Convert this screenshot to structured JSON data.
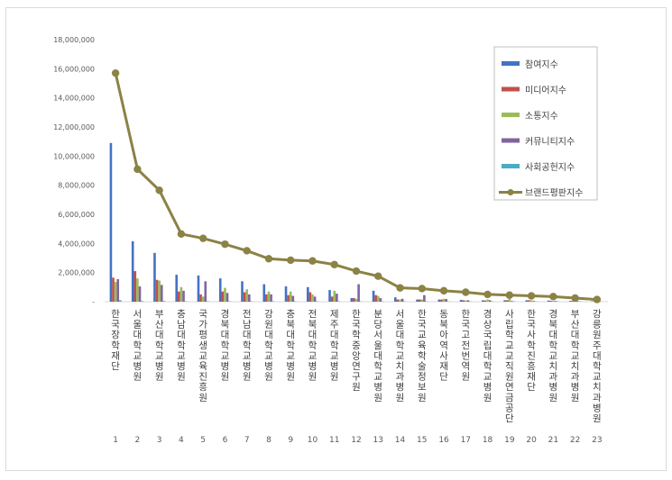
{
  "chart_data": {
    "type": "bar",
    "y_ticks": [
      "-",
      "2,000,000",
      "4,000,000",
      "6,000,000",
      "8,000,000",
      "10,000,000",
      "12,000,000",
      "14,000,000",
      "16,000,000",
      "18,000,000"
    ],
    "ylim": [
      0,
      18000000
    ],
    "grid": false,
    "legend_position": "top-right",
    "x": [
      "1",
      "2",
      "3",
      "4",
      "5",
      "6",
      "7",
      "8",
      "9",
      "10",
      "11",
      "12",
      "13",
      "14",
      "15",
      "16",
      "17",
      "18",
      "19",
      "20",
      "21",
      "22",
      "23"
    ],
    "categories": [
      "한국장학재단",
      "서울대학교병원",
      "부산대학교병원",
      "충남대학교병원",
      "국가평생교육진흥원",
      "경북대학교병원",
      "전남대학교병원",
      "강원대학교병원",
      "충북대학교병원",
      "전북대학교병원",
      "제주대학교병원",
      "한국학중앙연구원",
      "분당서울대학교병원",
      "서울대학교치과병원",
      "한국교육학술정보원",
      "동북아역사재단",
      "한국고전번역원",
      "경상국립대학교병원",
      "사립학교교직원연금공단",
      "한국사학진흥재단",
      "경북대학교치과병원",
      "부산대학교치과병원",
      "강릉원주대학교치과병원"
    ],
    "series": [
      {
        "name": "참여지수",
        "color": "#4472c4",
        "values": [
          10900000,
          4150000,
          3350000,
          1850000,
          1800000,
          1600000,
          1400000,
          1200000,
          1050000,
          1000000,
          800000,
          250000,
          750000,
          300000,
          150000,
          150000,
          120000,
          100000,
          100000,
          100000,
          80000,
          60000,
          30000
        ]
      },
      {
        "name": "미디어지수",
        "color": "#c0504d",
        "values": [
          1650000,
          2100000,
          1500000,
          700000,
          500000,
          700000,
          650000,
          500000,
          450000,
          650000,
          350000,
          250000,
          450000,
          150000,
          150000,
          150000,
          100000,
          80000,
          100000,
          100000,
          60000,
          50000,
          20000
        ]
      },
      {
        "name": "소통지수",
        "color": "#9bbb59",
        "values": [
          1350000,
          1600000,
          1450000,
          1000000,
          350000,
          950000,
          850000,
          700000,
          700000,
          500000,
          750000,
          200000,
          400000,
          150000,
          150000,
          200000,
          80000,
          150000,
          200000,
          100000,
          60000,
          40000,
          20000
        ]
      },
      {
        "name": "커뮤니티지수",
        "color": "#8064a2",
        "values": [
          1550000,
          1050000,
          1150000,
          750000,
          1400000,
          600000,
          500000,
          500000,
          400000,
          350000,
          550000,
          1200000,
          250000,
          200000,
          450000,
          180000,
          100000,
          100000,
          50000,
          50000,
          50000,
          50000,
          20000
        ]
      },
      {
        "name": "사회공헌지수",
        "color": "#4bacc6",
        "values": [
          100000,
          50000,
          50000,
          30000,
          30000,
          30000,
          30000,
          30000,
          30000,
          30000,
          30000,
          20000,
          20000,
          20000,
          20000,
          20000,
          20000,
          20000,
          20000,
          20000,
          20000,
          20000,
          10000
        ]
      }
    ],
    "line_series": {
      "name": "브랜드평판지수",
      "color": "#8b8245",
      "values": [
        15700000,
        9100000,
        7650000,
        4650000,
        4350000,
        3950000,
        3500000,
        2950000,
        2850000,
        2800000,
        2550000,
        2100000,
        1750000,
        950000,
        900000,
        750000,
        650000,
        500000,
        450000,
        400000,
        350000,
        250000,
        150000
      ]
    }
  }
}
